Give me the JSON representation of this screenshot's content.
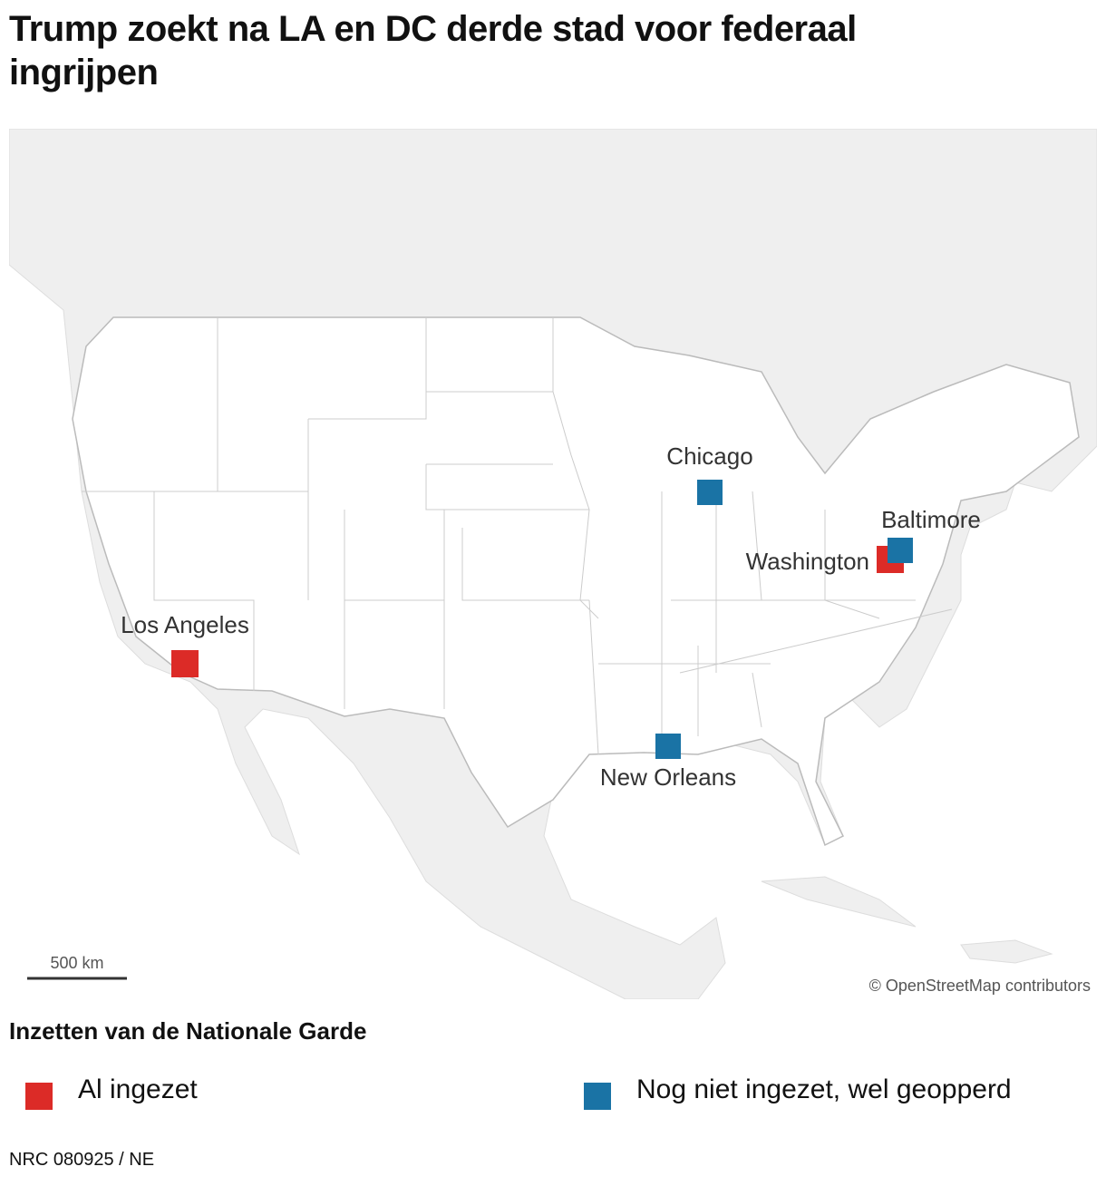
{
  "header": {
    "title": "Trump zoekt na LA en DC derde stad voor federaal ingrijpen"
  },
  "map": {
    "cities": [
      {
        "label": "Los Angeles"
      },
      {
        "label": "Washington"
      },
      {
        "label": "Chicago"
      },
      {
        "label": "Baltimore"
      },
      {
        "label": "New Orleans"
      }
    ],
    "scale_label": "500 km",
    "attribution": "© OpenStreetMap contributors"
  },
  "legend": {
    "title": "Inzetten van de Nationale Garde",
    "items": [
      {
        "label": "Al ingezet",
        "color": "#dc2b27"
      },
      {
        "label": "Nog niet ingezet, wel geopperd",
        "color": "#1a73a5"
      }
    ]
  },
  "footer": {
    "source": "NRC 080925 / NE"
  }
}
